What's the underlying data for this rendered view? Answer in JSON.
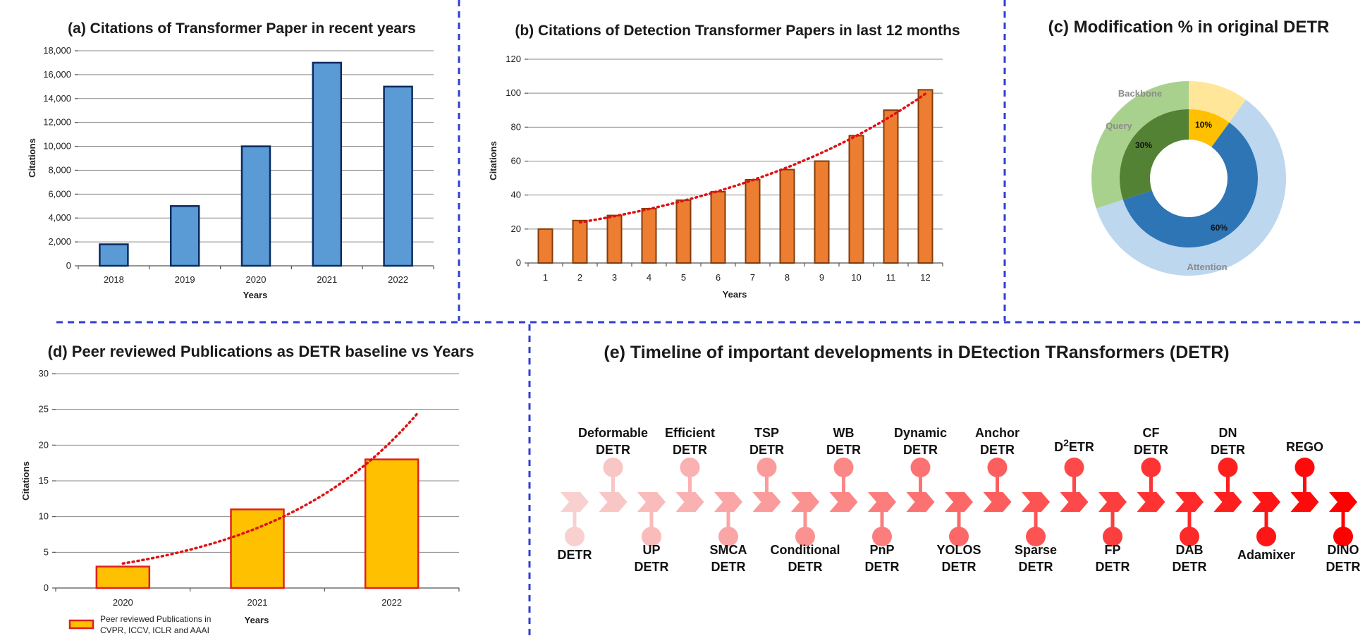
{
  "chart_data": [
    {
      "id": "a",
      "type": "bar",
      "title": "(a) Citations of Transformer Paper in recent years",
      "xlabel": "Years",
      "ylabel": "Citations",
      "categories": [
        "2018",
        "2019",
        "2020",
        "2021",
        "2022"
      ],
      "values": [
        1800,
        5000,
        10000,
        17000,
        15000
      ],
      "ylim": [
        0,
        18000
      ],
      "yticks": [
        "0",
        "2,000",
        "4,000",
        "6,000",
        "8,000",
        "10,000",
        "12,000",
        "14,000",
        "16,000",
        "18,000"
      ],
      "grid": true,
      "bar_color": "#5b9bd5",
      "bar_edge": "#0b2a5e"
    },
    {
      "id": "b",
      "type": "bar",
      "title": "(b) Citations of Detection Transformer Papers in last 12 months",
      "xlabel": "Years",
      "ylabel": "Citations",
      "categories": [
        "1",
        "2",
        "3",
        "4",
        "5",
        "6",
        "7",
        "8",
        "9",
        "10",
        "11",
        "12"
      ],
      "values": [
        20,
        25,
        28,
        32,
        37,
        42,
        49,
        55,
        60,
        75,
        90,
        102
      ],
      "trendline": "exponential",
      "ylim": [
        0,
        120
      ],
      "yticks": [
        "0",
        "20",
        "40",
        "60",
        "80",
        "100",
        "120"
      ],
      "grid": true,
      "bar_color": "#ed7d31",
      "bar_edge": "#843c0c",
      "trend_color": "#e01010"
    },
    {
      "id": "c",
      "type": "pie",
      "title": "(c) Modification % in original DETR",
      "labels": [
        "Backbone",
        "Attention",
        "Query"
      ],
      "values": [
        10,
        60,
        30
      ],
      "value_labels": [
        "10%",
        "60%",
        "30%"
      ],
      "inner_colors": [
        "#ffc000",
        "#2e75b6",
        "#548235"
      ],
      "outer_colors": [
        "#ffe699",
        "#bdd7ee",
        "#a9d18e"
      ],
      "outer_label_color": "#8c8c8c"
    },
    {
      "id": "d",
      "type": "bar",
      "title": "(d)  Peer reviewed Publications as DETR baseline vs Years",
      "xlabel": "Years",
      "ylabel": "Citations",
      "categories": [
        "2020",
        "2021",
        "2022"
      ],
      "values": [
        3,
        11,
        18
      ],
      "trendline": "exponential",
      "ylim": [
        0,
        30
      ],
      "yticks": [
        "0",
        "5",
        "10",
        "15",
        "20",
        "25",
        "30"
      ],
      "grid": true,
      "legend": "Peer reviewed Publications in CVPR, ICCV, ICLR and AAAI",
      "legend_lines": [
        "Peer reviewed Publications in",
        "CVPR, ICCV, ICLR and AAAI"
      ],
      "legend_position": "bottom-left",
      "bar_color": "#ffc000",
      "bar_edge": "#e02020",
      "trend_color": "#e01010"
    }
  ],
  "timeline": {
    "title": "(e) Timeline of important developments in DEtection TRansformers (DETR)",
    "events": [
      {
        "lines": [
          "DETR"
        ],
        "side": "bottom"
      },
      {
        "lines": [
          "Deformable",
          "DETR"
        ],
        "side": "top"
      },
      {
        "lines": [
          "UP",
          "DETR"
        ],
        "side": "bottom"
      },
      {
        "lines": [
          "Efficient",
          "DETR"
        ],
        "side": "top"
      },
      {
        "lines": [
          "SMCA",
          "DETR"
        ],
        "side": "bottom"
      },
      {
        "lines": [
          "TSP",
          "DETR"
        ],
        "side": "top"
      },
      {
        "lines": [
          "Conditional",
          "DETR"
        ],
        "side": "bottom"
      },
      {
        "lines": [
          "WB",
          "DETR"
        ],
        "side": "top"
      },
      {
        "lines": [
          "PnP",
          "DETR"
        ],
        "side": "bottom"
      },
      {
        "lines": [
          "Dynamic",
          "DETR"
        ],
        "side": "top"
      },
      {
        "lines": [
          "YOLOS",
          "DETR"
        ],
        "side": "bottom"
      },
      {
        "lines": [
          "Anchor",
          "DETR"
        ],
        "side": "top"
      },
      {
        "lines": [
          "Sparse",
          "DETR"
        ],
        "side": "bottom"
      },
      {
        "lines": [
          "D2ETR"
        ],
        "side": "top",
        "superscript": {
          "base": "D",
          "sup": "2",
          "rest": "ETR"
        }
      },
      {
        "lines": [
          "FP",
          "DETR"
        ],
        "side": "bottom"
      },
      {
        "lines": [
          "CF",
          "DETR"
        ],
        "side": "top"
      },
      {
        "lines": [
          "DAB",
          "DETR"
        ],
        "side": "bottom"
      },
      {
        "lines": [
          "DN",
          "DETR"
        ],
        "side": "top"
      },
      {
        "lines": [
          "Adamixer"
        ],
        "side": "bottom"
      },
      {
        "lines": [
          "REGO"
        ],
        "side": "top"
      },
      {
        "lines": [
          "DINO",
          "DETR"
        ],
        "side": "bottom"
      }
    ],
    "color_start": "#f9d0d0",
    "color_end": "#ff0000"
  }
}
